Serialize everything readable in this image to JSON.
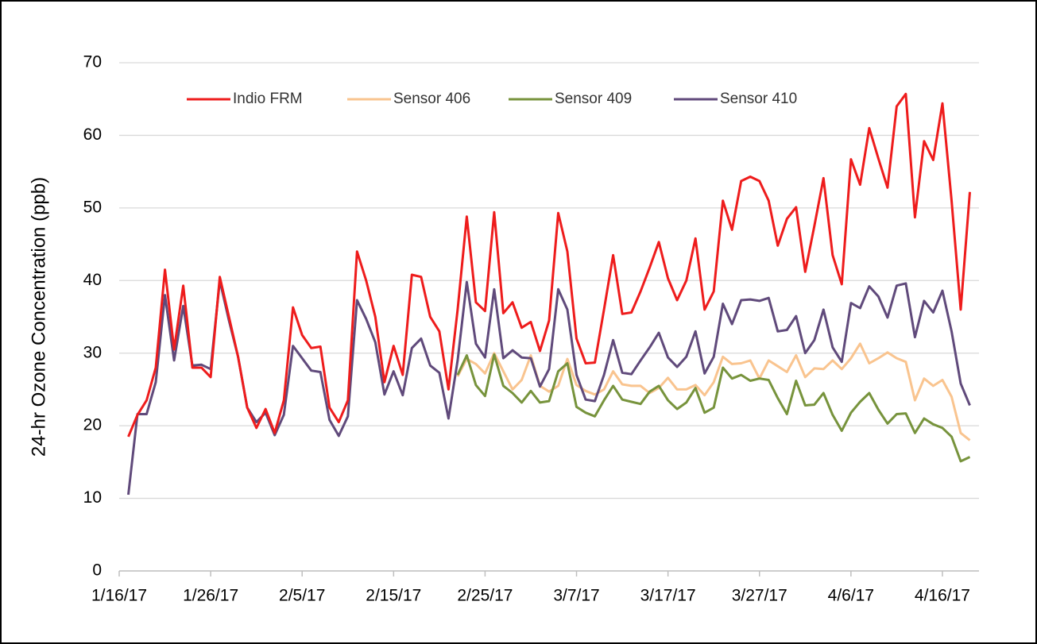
{
  "chart_data": {
    "type": "line",
    "y_label": "24-hr Ozone Concentration  (ppb)",
    "x": [
      "2017-01-17",
      "2017-01-18",
      "2017-01-19",
      "2017-01-20",
      "2017-01-21",
      "2017-01-22",
      "2017-01-23",
      "2017-01-24",
      "2017-01-25",
      "2017-01-26",
      "2017-01-27",
      "2017-01-28",
      "2017-01-29",
      "2017-01-30",
      "2017-01-31",
      "2017-02-01",
      "2017-02-02",
      "2017-02-03",
      "2017-02-04",
      "2017-02-05",
      "2017-02-06",
      "2017-02-07",
      "2017-02-08",
      "2017-02-09",
      "2017-02-10",
      "2017-02-11",
      "2017-02-12",
      "2017-02-13",
      "2017-02-14",
      "2017-02-15",
      "2017-02-16",
      "2017-02-17",
      "2017-02-18",
      "2017-02-19",
      "2017-02-20",
      "2017-02-21",
      "2017-02-22",
      "2017-02-23",
      "2017-02-24",
      "2017-02-25",
      "2017-02-26",
      "2017-02-27",
      "2017-02-28",
      "2017-03-01",
      "2017-03-02",
      "2017-03-03",
      "2017-03-04",
      "2017-03-05",
      "2017-03-06",
      "2017-03-07",
      "2017-03-08",
      "2017-03-09",
      "2017-03-10",
      "2017-03-11",
      "2017-03-12",
      "2017-03-13",
      "2017-03-14",
      "2017-03-15",
      "2017-03-16",
      "2017-03-17",
      "2017-03-18",
      "2017-03-19",
      "2017-03-20",
      "2017-03-21",
      "2017-03-22",
      "2017-03-23",
      "2017-03-24",
      "2017-03-25",
      "2017-03-26",
      "2017-03-27",
      "2017-03-28",
      "2017-03-29",
      "2017-03-30",
      "2017-03-31",
      "2017-04-01",
      "2017-04-02",
      "2017-04-03",
      "2017-04-04",
      "2017-04-05",
      "2017-04-06",
      "2017-04-07",
      "2017-04-08",
      "2017-04-09",
      "2017-04-10",
      "2017-04-11",
      "2017-04-12",
      "2017-04-13",
      "2017-04-14",
      "2017-04-15",
      "2017-04-16",
      "2017-04-17",
      "2017-04-18",
      "2017-04-19"
    ],
    "series": [
      {
        "name": "Indio FRM",
        "color": "#ee1c1c",
        "values": [
          18.5,
          21.5,
          23.5,
          28,
          41.5,
          30.5,
          39.3,
          28,
          28,
          26.7,
          40.5,
          35,
          29.5,
          22.5,
          19.7,
          22.3,
          19,
          23.5,
          36.3,
          32.5,
          30.7,
          30.9,
          22.5,
          20.5,
          23.5,
          44,
          40,
          35,
          26,
          31,
          27,
          40.8,
          40.5,
          35,
          33,
          25,
          36,
          48.8,
          37,
          35.8,
          49.4,
          35.5,
          37,
          33.5,
          34.3,
          30.3,
          34.5,
          49.3,
          44,
          32,
          28.6,
          28.7,
          36,
          43.5,
          35.4,
          35.6,
          38.5,
          41.8,
          45.3,
          40.3,
          37.3,
          40,
          45.8,
          36,
          38.5,
          51,
          47,
          53.7,
          54.3,
          53.7,
          51,
          44.8,
          48.5,
          50.1,
          41.2,
          47.5,
          54.1,
          43.5,
          39.5,
          56.7,
          53.2,
          61,
          56.8,
          52.8,
          64,
          65.7,
          48.7,
          59.2,
          56.6,
          64.4,
          51,
          36,
          52.2
        ]
      },
      {
        "name": "Sensor 406",
        "color": "#f9c48f",
        "values": [
          null,
          null,
          null,
          null,
          null,
          null,
          null,
          null,
          null,
          null,
          null,
          null,
          null,
          null,
          null,
          null,
          null,
          null,
          null,
          null,
          null,
          null,
          null,
          null,
          null,
          null,
          null,
          null,
          null,
          null,
          null,
          null,
          null,
          null,
          null,
          null,
          26.8,
          29.2,
          28.5,
          27.2,
          30,
          27.5,
          25,
          26.3,
          29.7,
          25.5,
          24.7,
          25.5,
          29.2,
          25.6,
          24.8,
          24.3,
          25,
          27.5,
          25.7,
          25.5,
          25.5,
          24.5,
          25.2,
          26.6,
          25,
          25,
          25.6,
          24.2,
          26,
          29.5,
          28.5,
          28.6,
          29,
          26.5,
          29,
          28.2,
          27.4,
          29.7,
          26.7,
          27.9,
          27.8,
          29,
          27.8,
          29.3,
          31.3,
          28.6,
          29.3,
          30.1,
          29.3,
          28.8,
          23.5,
          26.5,
          25.5,
          26.3,
          24,
          19,
          18
        ]
      },
      {
        "name": "Sensor 409",
        "color": "#77933c",
        "values": [
          null,
          null,
          null,
          null,
          null,
          null,
          null,
          null,
          null,
          null,
          null,
          null,
          null,
          null,
          null,
          null,
          null,
          null,
          null,
          null,
          null,
          null,
          null,
          null,
          null,
          null,
          null,
          null,
          null,
          null,
          null,
          null,
          null,
          null,
          null,
          null,
          27,
          29.7,
          25.6,
          24.1,
          29.8,
          25.5,
          24.5,
          23.2,
          24.8,
          23.2,
          23.4,
          27.5,
          28.6,
          22.6,
          21.8,
          21.3,
          23.5,
          25.5,
          23.6,
          23.3,
          23,
          24.7,
          25.5,
          23.5,
          22.3,
          23.2,
          25.2,
          21.8,
          22.5,
          28,
          26.5,
          27,
          26.2,
          26.5,
          26.3,
          23.8,
          21.6,
          26.2,
          22.8,
          22.9,
          24.5,
          21.5,
          19.3,
          21.8,
          23.3,
          24.5,
          22.2,
          20.3,
          21.6,
          21.7,
          19,
          21,
          20.2,
          19.7,
          18.5,
          15.1,
          15.7
        ]
      },
      {
        "name": "Sensor 410",
        "color": "#604a7b",
        "values": [
          10.5,
          21.6,
          21.6,
          26,
          38,
          29,
          36.5,
          28.3,
          28.4,
          27.8,
          40,
          34.5,
          29.5,
          22.5,
          20.5,
          21.8,
          18.7,
          21.5,
          31,
          29.3,
          27.6,
          27.4,
          20.8,
          18.6,
          21.3,
          37.3,
          34.7,
          31.5,
          24.3,
          27.5,
          24.2,
          30.7,
          32,
          28.3,
          27.3,
          21,
          29,
          39.8,
          31.3,
          29.4,
          38.8,
          29.3,
          30.4,
          29.4,
          29.3,
          25.4,
          27.8,
          38.8,
          36,
          27,
          23.6,
          23.4,
          27,
          31.8,
          27.3,
          27.1,
          29,
          30.8,
          32.8,
          29.4,
          28.1,
          29.5,
          33,
          27.2,
          29.5,
          36.8,
          34,
          37.3,
          37.4,
          37.2,
          37.6,
          33,
          33.2,
          35.1,
          30,
          31.8,
          36,
          30.8,
          28.8,
          36.9,
          36.2,
          39.2,
          37.8,
          34.9,
          39.3,
          39.6,
          32.2,
          37.2,
          35.6,
          38.6,
          33,
          25.8,
          22.8
        ]
      }
    ],
    "xlim": [
      "2017-01-16",
      "2017-04-20"
    ],
    "xticks": [
      {
        "value": "2017-01-16",
        "label": "1/16/17"
      },
      {
        "value": "2017-01-26",
        "label": "1/26/17"
      },
      {
        "value": "2017-02-05",
        "label": "2/5/17"
      },
      {
        "value": "2017-02-15",
        "label": "2/15/17"
      },
      {
        "value": "2017-02-25",
        "label": "2/25/17"
      },
      {
        "value": "2017-03-07",
        "label": "3/7/17"
      },
      {
        "value": "2017-03-17",
        "label": "3/17/17"
      },
      {
        "value": "2017-03-27",
        "label": "3/27/17"
      },
      {
        "value": "2017-04-06",
        "label": "4/6/17"
      },
      {
        "value": "2017-04-16",
        "label": "4/16/17"
      }
    ],
    "ylim": [
      0,
      70
    ],
    "yticks": [
      0,
      10,
      20,
      30,
      40,
      50,
      60,
      70
    ],
    "grid": true,
    "legend": "top"
  }
}
